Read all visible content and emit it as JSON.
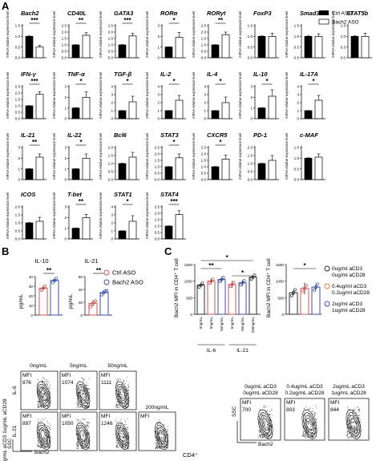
{
  "panels": {
    "a": "A",
    "b": "B",
    "c": "C"
  },
  "legend_a": {
    "ctrl": "Ctrl ASO",
    "bach2": "Bach2 ASO"
  },
  "ylabel_a": "mRNA relative expression level",
  "chart_data": [
    {
      "type": "bar",
      "panel": "A",
      "series": [
        {
          "name": "Ctrl ASO"
        },
        {
          "name": "Bach2 ASO"
        }
      ],
      "genes": [
        {
          "name": "Bach2",
          "values": [
            1.0,
            0.5
          ],
          "err": [
            0.02,
            0.08
          ],
          "ymax": 1.5,
          "ticks": [
            "0.0",
            "0.5",
            "1.0",
            "1.5"
          ],
          "sig": "***"
        },
        {
          "name": "CD40L",
          "values": [
            1.0,
            1.75
          ],
          "err": [
            0.02,
            0.2
          ],
          "ymax": 2.5,
          "ticks": [
            "0.0",
            "0.5",
            "1.0",
            "1.5",
            "2.0",
            "2.5"
          ],
          "sig": "**"
        },
        {
          "name": "GATA3",
          "values": [
            1.0,
            1.7
          ],
          "err": [
            0.02,
            0.2
          ],
          "ymax": 2.5,
          "ticks": [
            "0.0",
            "0.5",
            "1.0",
            "1.5",
            "2.0",
            "2.5"
          ],
          "sig": "***"
        },
        {
          "name": "RORα",
          "values": [
            1.0,
            1.9
          ],
          "err": [
            0.02,
            0.45
          ],
          "ymax": 3.0,
          "ticks": [
            "0",
            "1",
            "2",
            "3"
          ],
          "sig": "*"
        },
        {
          "name": "RORγt",
          "values": [
            1.0,
            1.8
          ],
          "err": [
            0.02,
            0.2
          ],
          "ymax": 2.5,
          "ticks": [
            "0.0",
            "0.5",
            "1.0",
            "1.5",
            "2.0",
            "2.5"
          ],
          "sig": "**"
        },
        {
          "name": "FoxP3",
          "values": [
            1.0,
            1.0
          ],
          "err": [
            0.02,
            0.15
          ],
          "ymax": 1.5,
          "ticks": [
            "0.0",
            "0.5",
            "1.0",
            "1.5"
          ],
          "sig": ""
        },
        {
          "name": "Smad3",
          "values": [
            1.0,
            1.0
          ],
          "err": [
            0.02,
            0.12
          ],
          "ymax": 1.5,
          "ticks": [
            "0.0",
            "0.5",
            "1.0",
            "1.5"
          ],
          "sig": ""
        },
        {
          "name": "STAT5b",
          "values": [
            1.0,
            1.0
          ],
          "err": [
            0.02,
            0.15
          ],
          "ymax": 1.5,
          "ticks": [
            "0.0",
            "0.5",
            "1.0",
            "1.5"
          ],
          "sig": ""
        },
        {
          "name": "IFN-γ",
          "values": [
            1.0,
            1.9
          ],
          "err": [
            0.02,
            0.2
          ],
          "ymax": 2.5,
          "ticks": [
            "0.0",
            "0.5",
            "1.0",
            "1.5",
            "2.0",
            "2.5"
          ],
          "sig": "***"
        },
        {
          "name": "TNF-α",
          "values": [
            1.0,
            2.0
          ],
          "err": [
            0.02,
            0.5
          ],
          "ymax": 3.0,
          "ticks": [
            "0",
            "1",
            "2",
            "3"
          ],
          "sig": "*"
        },
        {
          "name": "TGF-β",
          "values": [
            1.0,
            2.1
          ],
          "err": [
            0.02,
            0.7
          ],
          "ymax": 4.0,
          "ticks": [
            "0",
            "1",
            "2",
            "3",
            "4"
          ],
          "sig": "*"
        },
        {
          "name": "IL-2",
          "values": [
            1.0,
            2.3
          ],
          "err": [
            0.02,
            0.6
          ],
          "ymax": 4.0,
          "ticks": [
            "0",
            "1",
            "2",
            "3",
            "4"
          ],
          "sig": "*"
        },
        {
          "name": "IL-4",
          "values": [
            1.0,
            2.0
          ],
          "err": [
            0.02,
            0.7
          ],
          "ymax": 4.0,
          "ticks": [
            "0",
            "1",
            "2",
            "3",
            "4"
          ],
          "sig": "*"
        },
        {
          "name": "IL-10",
          "values": [
            1.0,
            2.1
          ],
          "err": [
            0.02,
            0.6
          ],
          "ymax": 3.0,
          "ticks": [
            "0",
            "1",
            "2",
            "3"
          ],
          "sig": "*"
        },
        {
          "name": "IL-17A",
          "values": [
            1.0,
            2.3
          ],
          "err": [
            0.02,
            0.6
          ],
          "ymax": 4.0,
          "ticks": [
            "0",
            "1",
            "2",
            "3",
            "4"
          ],
          "sig": "*"
        },
        {
          "name": "IL-21",
          "values": [
            1.0,
            2.1
          ],
          "err": [
            0.02,
            0.3
          ],
          "ymax": 3.0,
          "ticks": [
            "0",
            "1",
            "2",
            "3"
          ],
          "sig": "**"
        },
        {
          "name": "IL-22",
          "values": [
            1.0,
            2.0
          ],
          "err": [
            0.02,
            0.4
          ],
          "ymax": 3.0,
          "ticks": [
            "0",
            "1",
            "2",
            "3"
          ],
          "sig": "*"
        },
        {
          "name": "Bcl6",
          "values": [
            1.0,
            1.4
          ],
          "err": [
            0.02,
            0.3
          ],
          "ymax": 2.0,
          "ticks": [
            "0.0",
            "0.5",
            "1.0",
            "1.5",
            "2.0"
          ],
          "sig": ""
        },
        {
          "name": "STAT3",
          "values": [
            1.0,
            1.7
          ],
          "err": [
            0.02,
            0.3
          ],
          "ymax": 2.5,
          "ticks": [
            "0.0",
            "0.5",
            "1.0",
            "1.5",
            "2.0",
            "2.5"
          ],
          "sig": "*"
        },
        {
          "name": "CXCR5",
          "values": [
            1.0,
            1.6
          ],
          "err": [
            0.02,
            0.3
          ],
          "ymax": 2.5,
          "ticks": [
            "0.0",
            "0.5",
            "1.0",
            "1.5",
            "2.0",
            "2.5"
          ],
          "sig": "*"
        },
        {
          "name": "PD-1",
          "values": [
            1.0,
            1.2
          ],
          "err": [
            0.02,
            0.3
          ],
          "ymax": 2.0,
          "ticks": [
            "0.0",
            "0.5",
            "1.0",
            "1.5",
            "2.0"
          ],
          "sig": ""
        },
        {
          "name": "c-MAF",
          "values": [
            1.0,
            1.05
          ],
          "err": [
            0.02,
            0.15
          ],
          "ymax": 1.5,
          "ticks": [
            "0.0",
            "0.5",
            "1.0",
            "1.5"
          ],
          "sig": ""
        },
        {
          "name": "ICOS",
          "values": [
            1.0,
            1.1
          ],
          "err": [
            0.02,
            0.25
          ],
          "ymax": 2.0,
          "ticks": [
            "0.0",
            "0.5",
            "1.0",
            "1.5",
            "2.0"
          ],
          "sig": ""
        },
        {
          "name": "T-bet",
          "values": [
            1.0,
            2.0
          ],
          "err": [
            0.02,
            0.3
          ],
          "ymax": 3.0,
          "ticks": [
            "0",
            "1",
            "2",
            "3"
          ],
          "sig": "**"
        },
        {
          "name": "STAT1",
          "values": [
            1.0,
            2.2
          ],
          "err": [
            0.02,
            0.7
          ],
          "ymax": 4.0,
          "ticks": [
            "0",
            "1",
            "2",
            "3",
            "4"
          ],
          "sig": "*"
        },
        {
          "name": "STAT4",
          "values": [
            1.0,
            1.9
          ],
          "err": [
            0.02,
            0.3
          ],
          "ymax": 2.5,
          "ticks": [
            "0.0",
            "0.5",
            "1.0",
            "1.5",
            "2.0",
            "2.5"
          ],
          "sig": "***"
        }
      ]
    },
    {
      "type": "bar",
      "panel": "B",
      "ylabel": "pg/mL",
      "legend": [
        "Ctrl ASO",
        "Bach2 ASO"
      ],
      "charts": [
        {
          "title": "IL-10",
          "categories": [
            "Ctrl ASO",
            "Bach2 ASO"
          ],
          "values": [
            28,
            36
          ],
          "err": [
            2,
            2
          ],
          "points": [
            [
              26,
              28,
              30
            ],
            [
              34,
              36,
              38
            ]
          ],
          "ylim": [
            0,
            40
          ],
          "ticks": [
            "0",
            "10",
            "20",
            "30",
            "40"
          ],
          "sig": "**"
        },
        {
          "title": "IL-21",
          "categories": [
            "Ctrl ASO",
            "Bach2 ASO"
          ],
          "values": [
            18,
            35
          ],
          "err": [
            4,
            3
          ],
          "points": [
            [
              13,
              17,
              20,
              22
            ],
            [
              32,
              35,
              37,
              38
            ]
          ],
          "ylim": [
            0,
            60
          ],
          "ticks": [
            "0",
            "20",
            "40",
            "60"
          ],
          "sig": "**"
        }
      ]
    },
    {
      "type": "bar",
      "panel": "C",
      "ylabel": "Bach2 MFI in CD4⁺ T cell",
      "charts": [
        {
          "categories": [
            "0ng/mL",
            "5ng/mL",
            "50ng/mL",
            "5ng/mL",
            "50ng/mL",
            "200ng/mL"
          ],
          "groups": [
            "IL-6",
            "IL-21"
          ],
          "values": [
            880,
            1000,
            1050,
            900,
            950,
            1120
          ],
          "err": [
            50,
            90,
            80,
            100,
            90,
            60
          ],
          "colors": [
            "#2b2b2b",
            "#d9534f",
            "#3a4fb8",
            "#d9534f",
            "#3a4fb8",
            "#2b2b2b"
          ],
          "ylim": [
            0,
            1500
          ],
          "ticks": [
            "0",
            "500",
            "1000",
            "1500"
          ],
          "sig": [
            {
              "from": 0,
              "to": 5,
              "label": "*"
            },
            {
              "from": 0,
              "to": 2,
              "label": "**"
            },
            {
              "from": 3,
              "to": 5,
              "label": "*"
            }
          ]
        },
        {
          "categories": [
            "0ug/ml aCD3 0ug/ml aCD28",
            "0.4ug/ml aCD3 0.2ug/ml aCD28",
            "2ug/ml aCD3 1ug/ml aCD28"
          ],
          "values": [
            650,
            780,
            820
          ],
          "err": [
            80,
            180,
            100
          ],
          "colors": [
            "#2b2b2b",
            "#d9534f",
            "#3a4fb8"
          ],
          "ylim": [
            0,
            1500
          ],
          "ticks": [
            "0",
            "500",
            "1000",
            "1500"
          ],
          "sig": [
            {
              "from": 0,
              "to": 2,
              "label": "*"
            }
          ]
        }
      ]
    }
  ],
  "legend_c": [
    {
      "line1": "0ug/ml aCD3",
      "line2": "0ug/ml aCD28",
      "color": "#2b2b2b"
    },
    {
      "line1": "0.4ug/ml aCD3",
      "line2": "0.2ug/ml aCD28",
      "color": "#e07b39"
    },
    {
      "line1": "2ug/ml aCD3",
      "line2": "1ug/ml aCD28",
      "color": "#3a4fb8"
    }
  ],
  "flow_left": {
    "rowlabel": "2ug/mL aCD3 1ug/mL aCD28",
    "row1_label": "IL-6",
    "row2_label": "IL-21",
    "conc": [
      "0ng/mL",
      "5ng/mL",
      "50ng/mL",
      "200ng/mL"
    ],
    "row1_mfi": [
      "876",
      "1074",
      "1111"
    ],
    "row2_mfi": [
      "897",
      "1050",
      "1246"
    ],
    "mfi_label": "MFI",
    "ssc": "SSC",
    "bach2": "Bach2"
  },
  "flow_right": {
    "headers": [
      {
        "line1": "0ug/mL aCD3",
        "line2": "0ug/mL aCD28"
      },
      {
        "line1": "0.4ug/mL aCD3",
        "line2": "0.2ug/mL aCD28"
      },
      {
        "line1": "2ug/mL aCD3",
        "line2": "1ug/mL aCD28"
      }
    ],
    "mfi": [
      "700",
      "803",
      "844"
    ],
    "mfi_label": "MFI",
    "ssc": "SSC",
    "bach2": "Bach2"
  },
  "cd4_label": "CD4⁺"
}
